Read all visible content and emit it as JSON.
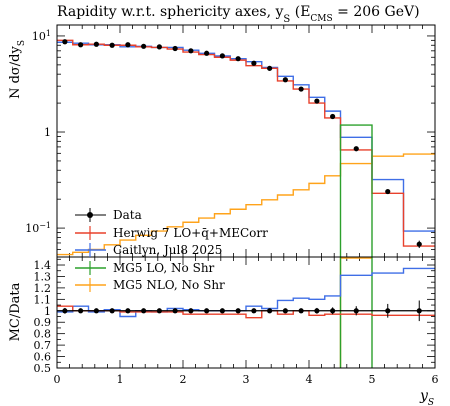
{
  "chart_data": {
    "type": "line",
    "title": "Rapidity w.r.t. sphericity axes, y",
    "title_sub": "S",
    "title_paren": " (E",
    "title_paren_sub": "CMS",
    "title_tail": " = 206 GeV)",
    "ylabel": "N dσ/dy",
    "ylabel_sub": "S",
    "ratio_ylabel": "MC/Data",
    "xlabel": "y",
    "xlabel_sub": "S",
    "x_ticks": [
      "0",
      "1",
      "2",
      "3",
      "4",
      "5",
      "6"
    ],
    "main_y_ticks": [
      {
        "value": 0.1,
        "label": "10",
        "sup": "−1"
      },
      {
        "value": 1,
        "label": "1",
        "sup": ""
      },
      {
        "value": 10,
        "label": "10",
        "sup": "1"
      }
    ],
    "ratio_y_ticks": [
      "0.5",
      "0.6",
      "0.7",
      "0.8",
      "0.9",
      "1",
      "1.1",
      "1.2",
      "1.3",
      "1.4"
    ],
    "xlim": [
      0,
      6
    ],
    "ylim_main": [
      0.05,
      13
    ],
    "ylim_ratio": [
      0.5,
      1.47
    ],
    "log_y": true,
    "legend_position": "bottom-left",
    "bin_edges": [
      0,
      0.25,
      0.5,
      0.75,
      1,
      1.25,
      1.5,
      1.75,
      2,
      2.25,
      2.5,
      2.75,
      3,
      3.25,
      3.5,
      3.75,
      4,
      4.25,
      4.5,
      5,
      5.5,
      6
    ],
    "series": [
      {
        "name": "Data",
        "color": "#000000",
        "style": "points",
        "x": [
          0.125,
          0.375,
          0.625,
          0.875,
          1.125,
          1.375,
          1.625,
          1.875,
          2.125,
          2.375,
          2.625,
          2.875,
          3.125,
          3.375,
          3.625,
          3.875,
          4.125,
          4.375,
          4.75,
          5.25,
          5.75
        ],
        "values": [
          8.7,
          8.1,
          8.2,
          8.0,
          8.1,
          7.8,
          7.7,
          7.4,
          7.0,
          6.6,
          6.2,
          5.8,
          5.2,
          4.6,
          3.5,
          2.8,
          2.1,
          1.45,
          0.67,
          0.24,
          0.068
        ],
        "yerr": [
          0.15,
          0.15,
          0.15,
          0.15,
          0.15,
          0.15,
          0.15,
          0.15,
          0.15,
          0.15,
          0.15,
          0.15,
          0.12,
          0.1,
          0.08,
          0.07,
          0.06,
          0.05,
          0.03,
          0.012,
          0.006
        ]
      },
      {
        "name": "Herwig 7 LO+q̄+MECorr",
        "color": "#e8412c",
        "style": "step",
        "values": [
          9.0,
          8.1,
          8.2,
          8.0,
          8.0,
          7.7,
          7.6,
          7.3,
          6.8,
          6.4,
          6.0,
          5.6,
          4.9,
          4.6,
          3.4,
          2.8,
          2.0,
          1.4,
          0.65,
          0.23,
          0.065
        ]
      },
      {
        "name": "Caitlyn, Jul8 2025",
        "color": "#3f6ee6",
        "style": "step",
        "values": [
          8.6,
          8.4,
          8.1,
          8.1,
          7.7,
          7.8,
          7.6,
          7.6,
          7.1,
          6.6,
          6.2,
          5.8,
          5.4,
          4.7,
          3.8,
          3.1,
          2.3,
          1.65,
          0.88,
          0.32,
          0.093
        ]
      },
      {
        "name": "MG5 LO, No Shr",
        "color": "#2ca02c",
        "style": "step",
        "values": [
          null,
          null,
          null,
          null,
          null,
          null,
          null,
          null,
          null,
          null,
          null,
          null,
          null,
          null,
          null,
          null,
          null,
          null,
          1.18,
          null,
          null
        ]
      },
      {
        "name": "MG5 NLO, No Shr",
        "color": "#ffa31a",
        "style": "step",
        "values": [
          0.053,
          0.056,
          0.06,
          0.067,
          0.075,
          0.084,
          0.093,
          0.103,
          0.115,
          0.127,
          0.141,
          0.157,
          0.175,
          0.197,
          0.221,
          0.25,
          0.292,
          0.35,
          0.47,
          0.56,
          0.59
        ]
      }
    ],
    "ratio_series": [
      {
        "name": "Data",
        "color": "#000000",
        "values": [
          1,
          1,
          1,
          1,
          1,
          1,
          1,
          1,
          1,
          1,
          1,
          1,
          1,
          1,
          1,
          1,
          1,
          1,
          1,
          1,
          1
        ],
        "yerr": [
          0.025,
          0.02,
          0.02,
          0.02,
          0.02,
          0.02,
          0.02,
          0.02,
          0.02,
          0.02,
          0.02,
          0.02,
          0.02,
          0.02,
          0.02,
          0.02,
          0.025,
          0.03,
          0.04,
          0.06,
          0.09
        ]
      },
      {
        "name": "Herwig 7 LO+q̄+MECorr",
        "color": "#e8412c",
        "values": [
          1.04,
          1.0,
          1.0,
          1.0,
          0.99,
          0.99,
          0.99,
          0.99,
          0.97,
          0.97,
          0.97,
          0.97,
          0.94,
          1.0,
          0.97,
          1.0,
          0.96,
          0.97,
          0.97,
          0.96,
          0.96
        ]
      },
      {
        "name": "Caitlyn, Jul8 2025",
        "color": "#3f6ee6",
        "values": [
          0.99,
          1.04,
          0.99,
          1.01,
          0.95,
          1.0,
          0.99,
          1.02,
          1.01,
          1.0,
          1.0,
          1.0,
          1.04,
          1.02,
          1.09,
          1.11,
          1.1,
          1.13,
          1.31,
          1.33,
          1.37
        ]
      }
    ],
    "ratio_vertical_lines": [
      {
        "name": "MG5 LO, No Shr",
        "color": "#2ca02c",
        "x": [
          4.5,
          5.0
        ],
        "top": 1.47
      },
      {
        "name": "MG5 NLO, No Shr",
        "color": "#ffa31a",
        "x": [
          4.5
        ],
        "top": 1.47,
        "hline_x": [
          4.5,
          5.0
        ],
        "hline_y": 1.47
      }
    ]
  }
}
